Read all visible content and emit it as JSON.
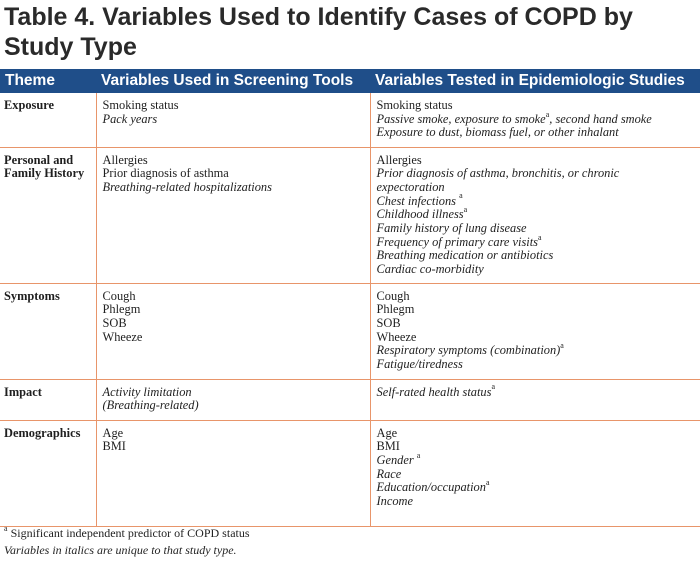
{
  "title": {
    "line1": "Table 4. Variables Used to Identify Cases of COPD by",
    "line2": "Study Type"
  },
  "header": {
    "theme": "Theme",
    "screening": "Variables Used in Screening Tools",
    "epidemiologic": "Variables Tested in Epidemiologic Studies"
  },
  "rows": [
    {
      "theme_lines": [
        "Exposure"
      ],
      "screening": [
        {
          "text": "Smoking status",
          "italic": false
        },
        {
          "text": "Pack years",
          "italic": true
        }
      ],
      "epidemiologic": [
        {
          "text": "Smoking status",
          "italic": false
        },
        {
          "text": "Passive smoke, exposure to smoke",
          "sup": "a",
          "after": ", second hand smoke",
          "italic": true
        },
        {
          "text": "Exposure to dust, biomass fuel, or other inhalant",
          "italic": true
        }
      ]
    },
    {
      "theme_lines": [
        "Personal and",
        "Family History"
      ],
      "screening": [
        {
          "text": "Allergies",
          "italic": false
        },
        {
          "text": "Prior diagnosis of asthma",
          "italic": false
        },
        {
          "text": "Breathing-related hospitalizations",
          "italic": true
        }
      ],
      "epidemiologic": [
        {
          "text": "Allergies",
          "italic": false
        },
        {
          "text": "Prior diagnosis of asthma, bronchitis, or chronic",
          "italic": true
        },
        {
          "text": "expectoration",
          "italic": true
        },
        {
          "text": "Chest infections ",
          "sup": "a",
          "italic": true
        },
        {
          "text": "Childhood illness",
          "sup": "a",
          "italic": true
        },
        {
          "text": "Family history of lung disease",
          "italic": true
        },
        {
          "text": "Frequency of primary care visits",
          "sup": "a",
          "italic": true
        },
        {
          "text": "Breathing medication or antibiotics",
          "italic": true
        },
        {
          "text": "Cardiac co-morbidity",
          "italic": true
        }
      ]
    },
    {
      "theme_lines": [
        "Symptoms"
      ],
      "screening": [
        {
          "text": "Cough",
          "italic": false
        },
        {
          "text": "Phlegm",
          "italic": false
        },
        {
          "text": "SOB",
          "italic": false
        },
        {
          "text": "Wheeze",
          "italic": false
        }
      ],
      "epidemiologic": [
        {
          "text": "Cough",
          "italic": false
        },
        {
          "text": "Phlegm",
          "italic": false
        },
        {
          "text": "SOB",
          "italic": false
        },
        {
          "text": "Wheeze",
          "italic": false
        },
        {
          "text": "Respiratory symptoms (combination)",
          "sup": "a",
          "italic": true
        },
        {
          "text": "Fatigue/tiredness",
          "italic": true
        }
      ]
    },
    {
      "theme_lines": [
        "Impact"
      ],
      "screening": [
        {
          "text": "Activity limitation",
          "italic": true
        },
        {
          "text": "(Breathing-related)",
          "italic": true
        }
      ],
      "epidemiologic": [
        {
          "text": "Self-rated health status",
          "sup": "a",
          "italic": true
        }
      ]
    },
    {
      "theme_lines": [
        "Demographics"
      ],
      "screening": [
        {
          "text": "Age",
          "italic": false
        },
        {
          "text": "BMI",
          "italic": false
        }
      ],
      "epidemiologic": [
        {
          "text": "Age",
          "italic": false
        },
        {
          "text": "BMI",
          "italic": false
        },
        {
          "text": "Gender ",
          "sup": "a",
          "italic": true
        },
        {
          "text": "Race",
          "italic": true
        },
        {
          "text": "Education/occupation",
          "sup": "a",
          "italic": true
        },
        {
          "text": "Income",
          "italic": true
        }
      ]
    }
  ],
  "row_heights": [
    54,
    136,
    96,
    41,
    106
  ],
  "footnote": {
    "sup": "a",
    "text": " Significant independent predictor of COPD status",
    "note": "Variables in italics are unique to that study type."
  },
  "colors": {
    "header_bg": "#1f4e89",
    "header_text": "#ffffff",
    "row_divider": "#e8956a"
  }
}
